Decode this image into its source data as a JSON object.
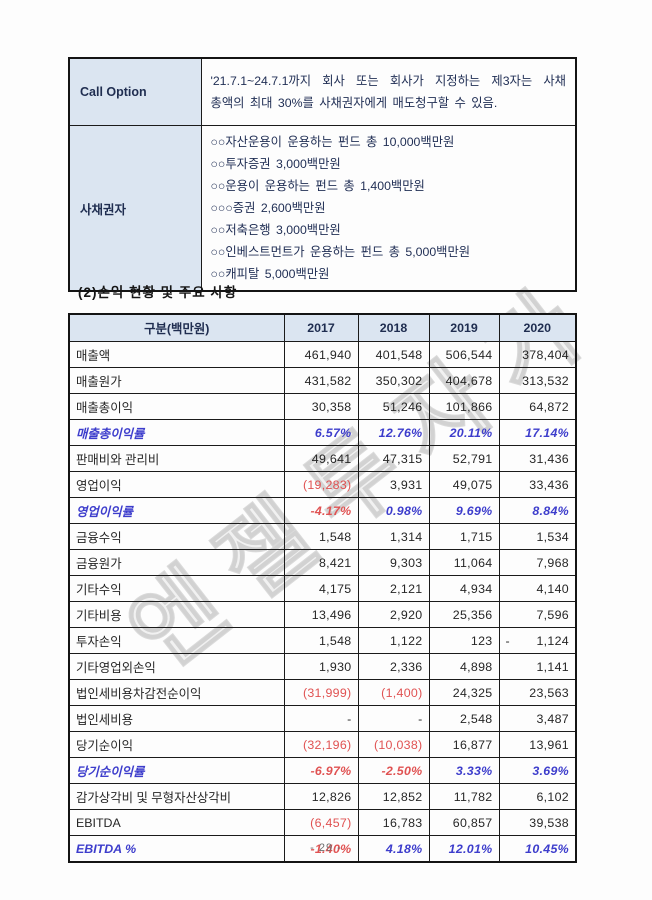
{
  "colors": {
    "header_bg": "#dbe5f1",
    "percent_blue": "#3d3dcc",
    "negative_red": "#e05252",
    "border": "#1b1b1b"
  },
  "page": {
    "footer": "- 29 -",
    "watermark": "엔젤투자가"
  },
  "terms_table": {
    "rows": [
      {
        "label": "Call Option",
        "lines": [
          "'21.7.1~24.7.1까지 회사 또는 회사가 지정하는 제3자는 사채",
          "총액의 최대 30%를 사채권자에게 매도청구할 수 있음."
        ]
      },
      {
        "label": "사채권자",
        "lines": [
          "○○자산운용이 운용하는 펀드 총 10,000백만원",
          "○○투자증권 3,000백만원",
          "○○운용이 운용하는 펀드 총 1,400백만원",
          "○○○증권 2,600백만원",
          "○○저축은행 3,000백만원",
          "○○인베스트먼트가 운용하는 펀드 총 5,000백만원",
          "○○캐피탈 5,000백만원"
        ]
      }
    ]
  },
  "section_title": "(2)손익 현황 및 주요 사항",
  "income_table": {
    "headers": [
      "구분(백만원)",
      "2017",
      "2018",
      "2019",
      "2020"
    ],
    "rows": [
      {
        "label": "매출액",
        "type": "num",
        "values": [
          "461,940",
          "401,548",
          "506,544",
          "378,404"
        ],
        "flags": [
          "",
          "",
          "",
          ""
        ]
      },
      {
        "label": "매출원가",
        "type": "num",
        "values": [
          "431,582",
          "350,302",
          "404,678",
          "313,532"
        ],
        "flags": [
          "",
          "",
          "",
          ""
        ]
      },
      {
        "label": "매출총이익",
        "type": "num",
        "values": [
          "30,358",
          "51,246",
          "101,866",
          "64,872"
        ],
        "flags": [
          "",
          "",
          "",
          ""
        ]
      },
      {
        "label": "매출총이익률",
        "type": "pct",
        "values": [
          "6.57%",
          "12.76%",
          "20.11%",
          "17.14%"
        ],
        "flags": [
          "pos",
          "pos",
          "pos",
          "pos"
        ]
      },
      {
        "label": "판매비와 관리비",
        "type": "num",
        "values": [
          "49,641",
          "47,315",
          "52,791",
          "31,436"
        ],
        "flags": [
          "",
          "",
          "",
          ""
        ]
      },
      {
        "label": "영업이익",
        "type": "num",
        "values": [
          "(19,283)",
          "3,931",
          "49,075",
          "33,436"
        ],
        "flags": [
          "neg",
          "",
          "",
          ""
        ]
      },
      {
        "label": "영업이익률",
        "type": "pct",
        "values": [
          "-4.17%",
          "0.98%",
          "9.69%",
          "8.84%"
        ],
        "flags": [
          "neg",
          "pos",
          "pos",
          "pos"
        ]
      },
      {
        "label": "금융수익",
        "type": "num",
        "values": [
          "1,548",
          "1,314",
          "1,715",
          "1,534"
        ],
        "flags": [
          "",
          "",
          "",
          ""
        ]
      },
      {
        "label": "금융원가",
        "type": "num",
        "values": [
          "8,421",
          "9,303",
          "11,064",
          "7,968"
        ],
        "flags": [
          "",
          "",
          "",
          ""
        ]
      },
      {
        "label": "기타수익",
        "type": "num",
        "values": [
          "4,175",
          "2,121",
          "4,934",
          "4,140"
        ],
        "flags": [
          "",
          "",
          "",
          ""
        ]
      },
      {
        "label": "기타비용",
        "type": "num",
        "values": [
          "13,496",
          "2,920",
          "25,356",
          "7,596"
        ],
        "flags": [
          "",
          "",
          "",
          ""
        ]
      },
      {
        "label": "투자손익",
        "type": "num",
        "values": [
          "1,548",
          "1,122",
          "123",
          "1,124"
        ],
        "flags": [
          "",
          "",
          "",
          "acct"
        ]
      },
      {
        "label": "기타영업외손익",
        "type": "num",
        "values": [
          "1,930",
          "2,336",
          "4,898",
          "1,141"
        ],
        "flags": [
          "",
          "",
          "",
          ""
        ]
      },
      {
        "label": "법인세비용차감전순이익",
        "type": "num",
        "values": [
          "(31,999)",
          "(1,400)",
          "24,325",
          "23,563"
        ],
        "flags": [
          "neg",
          "neg",
          "",
          ""
        ]
      },
      {
        "label": "법인세비용",
        "type": "num",
        "values": [
          "-",
          "-",
          "2,548",
          "3,487"
        ],
        "flags": [
          "",
          "",
          "",
          ""
        ]
      },
      {
        "label": "당기순이익",
        "type": "num",
        "values": [
          "(32,196)",
          "(10,038)",
          "16,877",
          "13,961"
        ],
        "flags": [
          "neg",
          "neg",
          "",
          ""
        ]
      },
      {
        "label": "당기순이익률",
        "type": "pct",
        "values": [
          "-6.97%",
          "-2.50%",
          "3.33%",
          "3.69%"
        ],
        "flags": [
          "neg",
          "neg",
          "pos",
          "pos"
        ]
      },
      {
        "label": "감가상각비 및 무형자산상각비",
        "type": "num",
        "values": [
          "12,826",
          "12,852",
          "11,782",
          "6,102"
        ],
        "flags": [
          "",
          "",
          "",
          ""
        ]
      },
      {
        "label": "EBITDA",
        "type": "num",
        "values": [
          "(6,457)",
          "16,783",
          "60,857",
          "39,538"
        ],
        "flags": [
          "neg",
          "",
          "",
          ""
        ]
      },
      {
        "label": "EBITDA %",
        "type": "pct",
        "values": [
          "-1.40%",
          "4.18%",
          "12.01%",
          "10.45%"
        ],
        "flags": [
          "neg",
          "pos",
          "pos",
          "pos"
        ]
      }
    ]
  }
}
